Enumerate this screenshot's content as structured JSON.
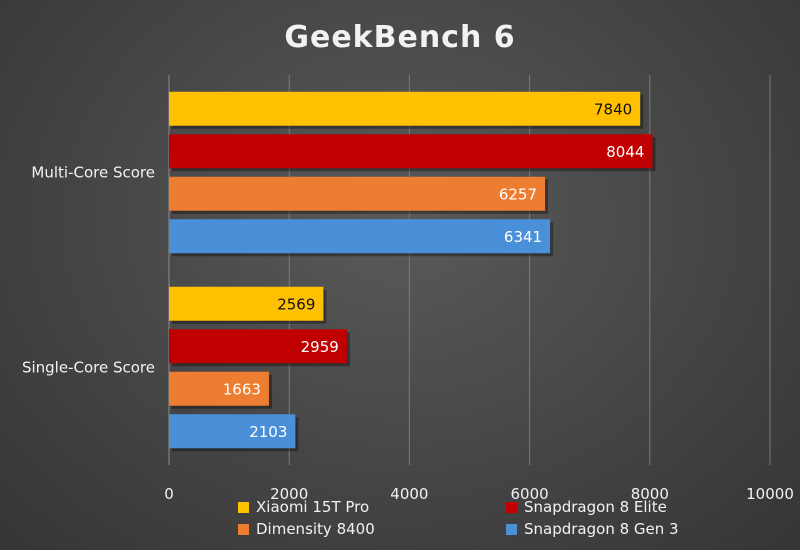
{
  "chart_data": {
    "type": "bar",
    "orientation": "horizontal",
    "title": "GeekBench 6",
    "categories": [
      "Multi-Core Score",
      "Single-Core Score"
    ],
    "series": [
      {
        "name": "Xiaomi 15T Pro",
        "color": "#FFC000",
        "label_color": "#111111",
        "values": [
          7840,
          2569
        ]
      },
      {
        "name": "Snapdragon 8 Elite",
        "color": "#C00000",
        "label_color": "#ffffff",
        "values": [
          8044,
          2959
        ]
      },
      {
        "name": "Dimensity 8400",
        "color": "#ED7D31",
        "label_color": "#ffffff",
        "values": [
          6257,
          1663
        ]
      },
      {
        "name": "Snapdragon 8 Gen 3",
        "color": "#4A90D9",
        "label_color": "#ffffff",
        "values": [
          6341,
          2103
        ]
      }
    ],
    "xlim": [
      0,
      10000
    ],
    "xticks": [
      0,
      2000,
      4000,
      6000,
      8000,
      10000
    ],
    "grid": "vertical",
    "legend_position": "bottom"
  }
}
